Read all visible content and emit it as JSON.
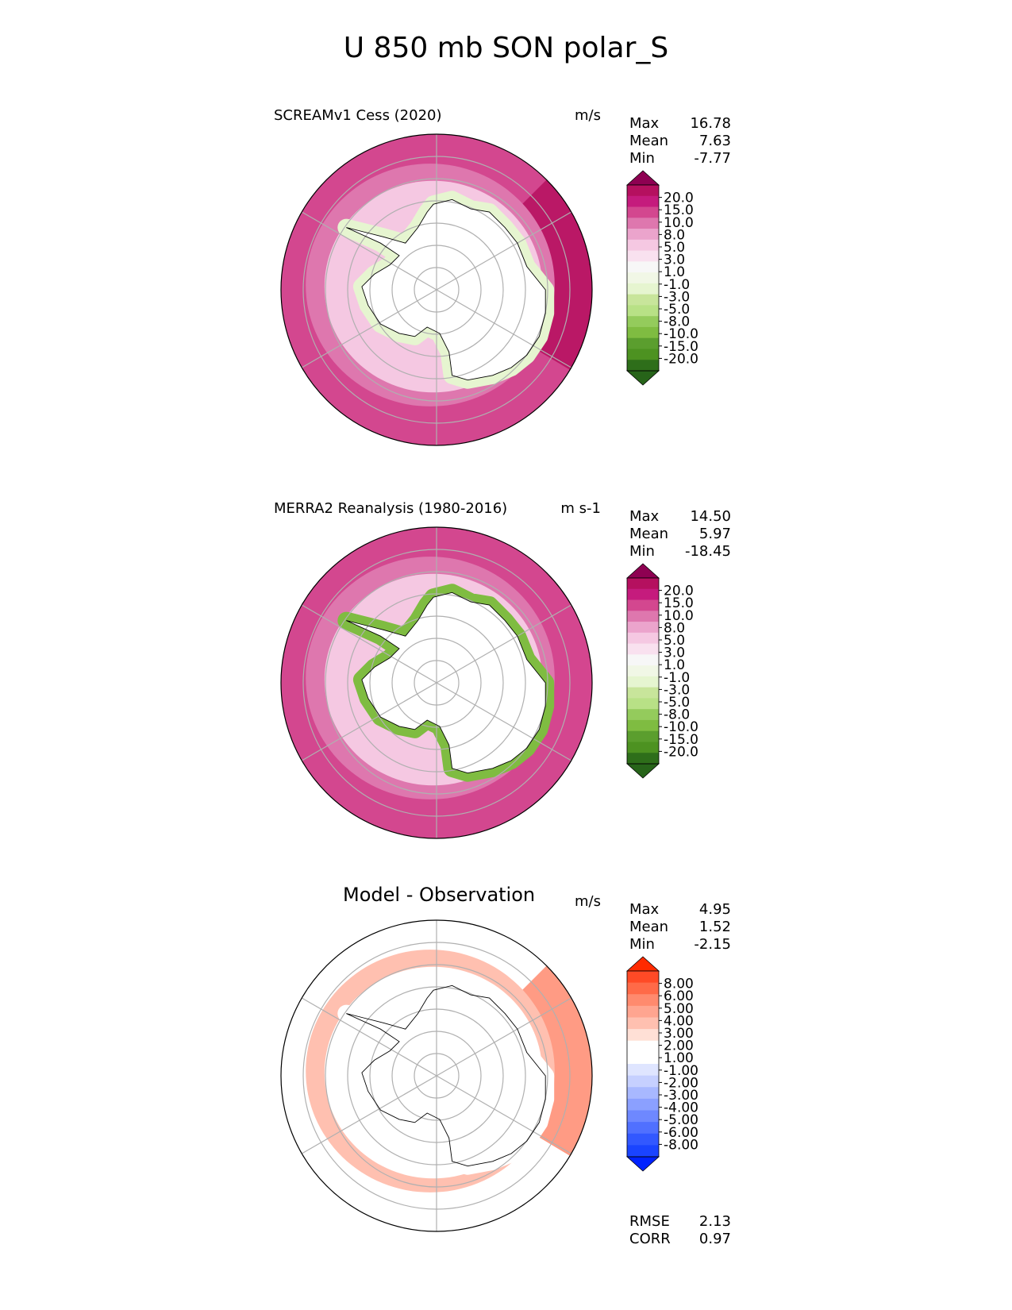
{
  "title": "U 850 mb SON polar_S",
  "chart_data": [
    {
      "type": "heatmap",
      "projection": "south-polar-stereographic",
      "title": "SCREAMv1 Cess (2020)",
      "units": "m/s",
      "stats": {
        "max_label": "Max",
        "max": "16.78",
        "mean_label": "Mean",
        "mean": "7.63",
        "min_label": "Min",
        "min": "-7.77"
      },
      "colorbar": {
        "ticks": [
          "20.0",
          "15.0",
          "10.0",
          "8.0",
          "5.0",
          "3.0",
          "1.0",
          "-1.0",
          "-3.0",
          "-5.0",
          "-8.0",
          "-10.0",
          "-15.0",
          "-20.0"
        ],
        "colors": [
          "#8e0152",
          "#b5105f",
          "#c51b7d",
          "#d3478f",
          "#de77ae",
          "#eba4cc",
          "#f5c8e2",
          "#f9e1ef",
          "#f7f7f7",
          "#f1f7e6",
          "#e6f5d0",
          "#c8e59b",
          "#b8e186",
          "#94cb5c",
          "#7fbc41",
          "#5b9e2e",
          "#4d9221",
          "#2e6e1a",
          "#276419"
        ]
      },
      "bands": {
        "outer_ring": "#d3478f",
        "sector_high": "#b5105f",
        "mid_ring": "#de77ae",
        "inner_ring": "#f5c8e2",
        "coast_band": "#e6f5d0",
        "interior": "#ffffff"
      }
    },
    {
      "type": "heatmap",
      "projection": "south-polar-stereographic",
      "title": "MERRA2 Reanalysis (1980-2016)",
      "units": "m s-1",
      "stats": {
        "max_label": "Max",
        "max": "14.50",
        "mean_label": "Mean",
        "mean": "5.97",
        "min_label": "Min",
        "min": "-18.45"
      },
      "colorbar": {
        "ticks": [
          "20.0",
          "15.0",
          "10.0",
          "8.0",
          "5.0",
          "3.0",
          "1.0",
          "-1.0",
          "-3.0",
          "-5.0",
          "-8.0",
          "-10.0",
          "-15.0",
          "-20.0"
        ],
        "colors": [
          "#8e0152",
          "#b5105f",
          "#c51b7d",
          "#d3478f",
          "#de77ae",
          "#eba4cc",
          "#f5c8e2",
          "#f9e1ef",
          "#f7f7f7",
          "#f1f7e6",
          "#e6f5d0",
          "#c8e59b",
          "#b8e186",
          "#94cb5c",
          "#7fbc41",
          "#5b9e2e",
          "#4d9221",
          "#2e6e1a",
          "#276419"
        ]
      },
      "bands": {
        "outer_ring": "#d3478f",
        "sector_high": "#d3478f",
        "mid_ring": "#de77ae",
        "inner_ring": "#f5c8e2",
        "coast_band": "#7fbc41",
        "interior": "#ffffff"
      }
    },
    {
      "type": "heatmap",
      "projection": "south-polar-stereographic",
      "title": "Model - Observation",
      "units": "m/s",
      "stats": {
        "max_label": "Max",
        "max": "4.95",
        "mean_label": "Mean",
        "mean": "1.52",
        "min_label": "Min",
        "min": "-2.15"
      },
      "colorbar": {
        "ticks": [
          "8.00",
          "6.00",
          "5.00",
          "4.00",
          "3.00",
          "2.00",
          "1.00",
          "-1.00",
          "-2.00",
          "-3.00",
          "-4.00",
          "-5.00",
          "-6.00",
          "-8.00"
        ],
        "colors": [
          "#ff2a00",
          "#ff4a26",
          "#ff6a48",
          "#ff8a6e",
          "#ffa590",
          "#ffc0b0",
          "#ffe0d6",
          "#ffffff",
          "#ffffff",
          "#dfe5ff",
          "#c6d0ff",
          "#a8b8ff",
          "#8ba0ff",
          "#6e88ff",
          "#5070ff",
          "#3258ff",
          "#1a44ff",
          "#0022ff"
        ]
      },
      "bands": {
        "outer_ring": "#ffffff",
        "sector_high": "#ff8a6e",
        "mid_ring": "#ffc0b0",
        "inner_ring": "#ffffff",
        "coast_band": "#ffffff",
        "interior": "#ffffff"
      },
      "footer": {
        "rmse_label": "RMSE",
        "rmse": "2.13",
        "corr_label": "CORR",
        "corr": "0.97"
      }
    }
  ]
}
